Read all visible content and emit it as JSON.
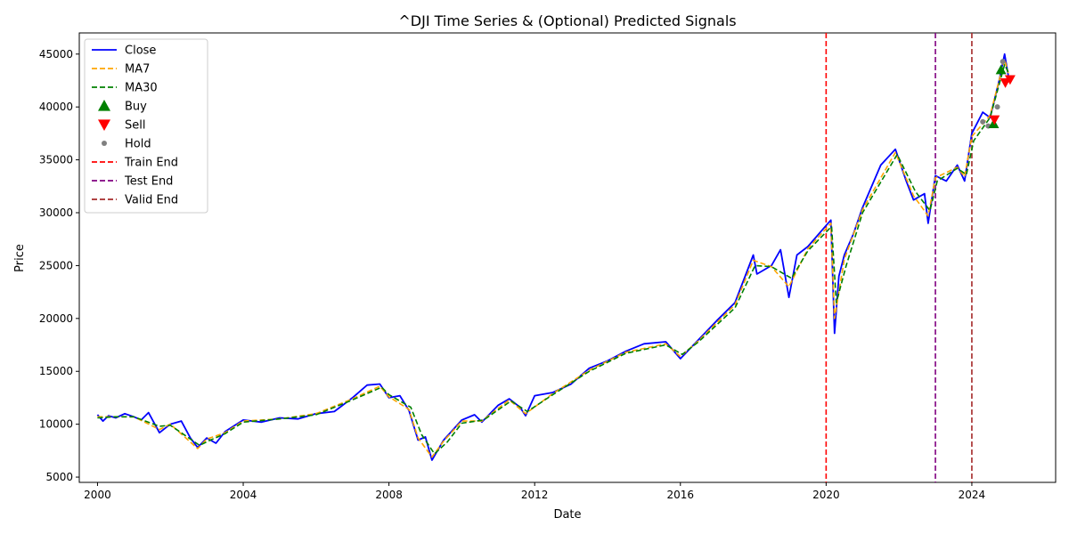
{
  "chart_data": {
    "type": "line",
    "title": "^DJI Time Series & (Optional) Predicted Signals",
    "xlabel": "Date",
    "ylabel": "Price",
    "xlim": [
      1999.5,
      2026.3
    ],
    "ylim": [
      4500,
      47000
    ],
    "x_ticks": [
      2000,
      2004,
      2008,
      2012,
      2016,
      2020,
      2024
    ],
    "x_tick_labels": [
      "2000",
      "2004",
      "2008",
      "2012",
      "2016",
      "2020",
      "2024"
    ],
    "y_ticks": [
      5000,
      10000,
      15000,
      20000,
      25000,
      30000,
      35000,
      40000,
      45000
    ],
    "y_tick_labels": [
      "5000",
      "10000",
      "15000",
      "20000",
      "25000",
      "30000",
      "35000",
      "40000",
      "45000"
    ],
    "grid": false,
    "legend_position": "top-left",
    "colors": {
      "close": "#0000ff",
      "ma7": "#ffa500",
      "ma30": "#008000",
      "buy": "#008000",
      "sell": "#ff0000",
      "hold": "#808080",
      "train_end": "#ff0000",
      "test_end": "#800080",
      "valid_end": "#a52a2a"
    },
    "series": [
      {
        "name": "Close",
        "x": [
          2000.0,
          2000.15,
          2000.3,
          2000.5,
          2000.75,
          2001.0,
          2001.2,
          2001.4,
          2001.7,
          2002.0,
          2002.3,
          2002.55,
          2002.75,
          2003.0,
          2003.25,
          2003.5,
          2004.0,
          2004.5,
          2005.0,
          2005.5,
          2006.0,
          2006.5,
          2007.0,
          2007.4,
          2007.75,
          2008.0,
          2008.3,
          2008.55,
          2008.8,
          2009.0,
          2009.18,
          2009.5,
          2010.0,
          2010.35,
          2010.55,
          2011.0,
          2011.3,
          2011.6,
          2011.75,
          2012.0,
          2012.5,
          2013.0,
          2013.5,
          2014.0,
          2014.5,
          2015.0,
          2015.6,
          2016.0,
          2016.5,
          2017.0,
          2017.5,
          2018.0,
          2018.1,
          2018.5,
          2018.75,
          2018.98,
          2019.2,
          2019.5,
          2020.0,
          2020.13,
          2020.23,
          2020.35,
          2020.5,
          2020.75,
          2021.0,
          2021.5,
          2021.9,
          2022.2,
          2022.4,
          2022.7,
          2022.8,
          2023.0,
          2023.3,
          2023.6,
          2023.8,
          2024.0,
          2024.3,
          2024.5,
          2024.75,
          2024.9,
          2025.0
        ],
        "values": [
          10900,
          10300,
          10800,
          10600,
          11000,
          10700,
          10400,
          11100,
          9200,
          10000,
          10300,
          8700,
          7800,
          8700,
          8200,
          9300,
          10400,
          10200,
          10600,
          10500,
          11000,
          11200,
          12500,
          13700,
          13800,
          12500,
          12700,
          11300,
          8500,
          8800,
          6600,
          8500,
          10400,
          10900,
          10200,
          11800,
          12400,
          11600,
          10800,
          12700,
          13000,
          13800,
          15300,
          16000,
          16900,
          17600,
          17800,
          16200,
          18000,
          19800,
          21500,
          26000,
          24200,
          25000,
          26500,
          22000,
          26000,
          26800,
          28800,
          29300,
          18600,
          24000,
          26000,
          28000,
          30500,
          34500,
          36000,
          33000,
          31200,
          31800,
          29000,
          33500,
          33000,
          34500,
          33000,
          37500,
          39500,
          39000,
          42500,
          45000,
          43000
        ]
      },
      {
        "name": "MA7",
        "x": [
          2000.0,
          2000.5,
          2001.0,
          2001.7,
          2002.0,
          2002.75,
          2003.0,
          2003.5,
          2004.0,
          2005.0,
          2006.0,
          2007.0,
          2007.75,
          2008.0,
          2008.55,
          2008.8,
          2009.18,
          2009.5,
          2010.0,
          2010.55,
          2011.3,
          2011.75,
          2012.5,
          2013.5,
          2014.5,
          2015.6,
          2016.0,
          2016.5,
          2017.5,
          2018.0,
          2018.5,
          2018.98,
          2019.5,
          2020.13,
          2020.23,
          2020.5,
          2021.0,
          2021.9,
          2022.4,
          2022.8,
          2023.0,
          2023.6,
          2023.8,
          2024.0,
          2024.5,
          2024.9,
          2025.0
        ],
        "values": [
          10700,
          10700,
          10700,
          9500,
          10000,
          7700,
          8600,
          9200,
          10300,
          10500,
          11000,
          12400,
          13600,
          12600,
          11400,
          8700,
          6900,
          8400,
          10300,
          10300,
          12300,
          11000,
          12900,
          15100,
          16800,
          17600,
          16400,
          17900,
          21300,
          25500,
          24900,
          23000,
          26600,
          29000,
          20000,
          25600,
          30300,
          35700,
          31600,
          29700,
          33300,
          34300,
          33400,
          37200,
          39200,
          44500,
          43200
        ]
      },
      {
        "name": "MA30",
        "x": [
          2000.0,
          2000.5,
          2001.0,
          2001.7,
          2002.0,
          2002.8,
          2003.1,
          2003.5,
          2004.0,
          2005.0,
          2006.0,
          2007.0,
          2007.8,
          2008.0,
          2008.6,
          2008.9,
          2009.25,
          2009.6,
          2010.0,
          2010.6,
          2011.35,
          2011.8,
          2012.5,
          2013.5,
          2014.5,
          2015.6,
          2016.05,
          2016.5,
          2017.5,
          2018.05,
          2018.5,
          2019.05,
          2019.5,
          2020.15,
          2020.28,
          2020.55,
          2021.0,
          2021.95,
          2022.45,
          2022.85,
          2023.05,
          2023.6,
          2023.85,
          2024.05,
          2024.5,
          2024.9,
          2025.0
        ],
        "values": [
          10600,
          10700,
          10700,
          9800,
          9900,
          8000,
          8500,
          9100,
          10200,
          10500,
          10900,
          12300,
          13500,
          12800,
          11600,
          9000,
          7200,
          8300,
          10100,
          10400,
          12200,
          11200,
          12800,
          15000,
          16700,
          17500,
          16600,
          17800,
          21000,
          25000,
          24900,
          23800,
          26400,
          28700,
          21500,
          25000,
          30000,
          35500,
          32000,
          30200,
          33000,
          34200,
          33600,
          36800,
          39000,
          44000,
          43300
        ]
      }
    ],
    "signals": {
      "buy": {
        "x": [
          2024.6,
          2024.8
        ],
        "values": [
          38400,
          43500
        ]
      },
      "sell": {
        "x": [
          2024.62,
          2024.92,
          2025.05
        ],
        "values": [
          38800,
          42300,
          42600
        ]
      },
      "hold": {
        "x": [
          2024.3,
          2024.45,
          2024.7,
          2024.85
        ],
        "values": [
          38600,
          38200,
          40000,
          44300
        ]
      }
    },
    "vertical_lines": [
      {
        "name": "Train End",
        "x": 2020.0
      },
      {
        "name": "Test End",
        "x": 2023.0
      },
      {
        "name": "Valid End",
        "x": 2024.0
      }
    ],
    "legend": [
      "Close",
      "MA7",
      "MA30",
      "Buy",
      "Sell",
      "Hold",
      "Train End",
      "Test End",
      "Valid End"
    ]
  }
}
